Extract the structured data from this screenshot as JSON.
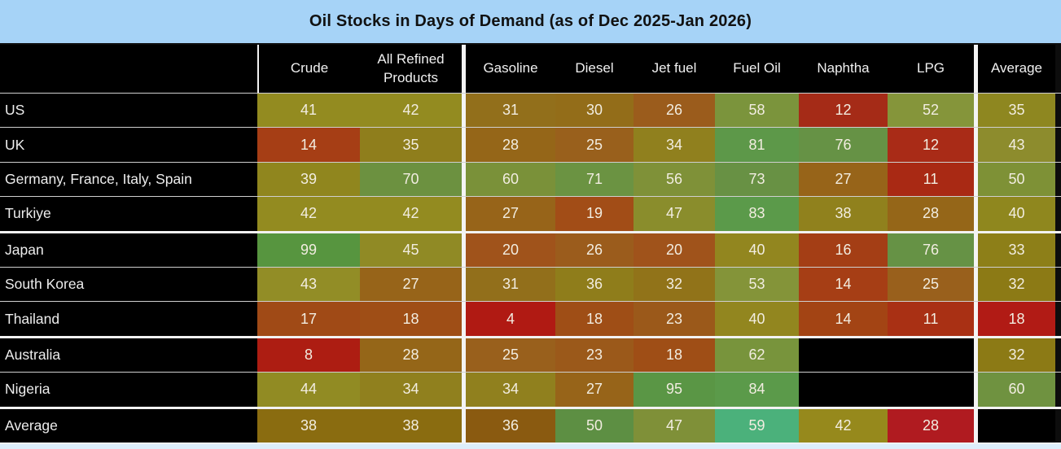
{
  "title": "Oil Stocks in Days of Demand (as of Dec 2025-Jan 2026)",
  "colors": {
    "title_bg": "#a6d3f7",
    "bottom_strip_bg": "#dceefb",
    "header_bg": "#000000",
    "header_text": "#f0f0f0",
    "label_text": "#ededed",
    "cell_text": "#f2ede1",
    "blank_cell_bg": "#000000",
    "thin_row_separator": "#cfcfcf",
    "group_row_separator": "#f2f2f2",
    "column_separator": "#f4f4f4",
    "right_edge": "#0d0d0d",
    "scale_low": "#b01a13",
    "scale_mid": "#938b20",
    "scale_high": "#57953f"
  },
  "columns": [
    "Crude",
    "All Refined Products",
    "Gasoline",
    "Diesel",
    "Jet fuel",
    "Fuel Oil",
    "Naphtha",
    "LPG",
    "Average"
  ],
  "rows": [
    {
      "label": "US",
      "group_start": false,
      "cells": [
        {
          "v": "41",
          "c": "#938b20"
        },
        {
          "v": "42",
          "c": "#938b20"
        },
        {
          "v": "31",
          "c": "#926f1b"
        },
        {
          "v": "30",
          "c": "#936d19"
        },
        {
          "v": "26",
          "c": "#9b5c1c"
        },
        {
          "v": "58",
          "c": "#7b943c"
        },
        {
          "v": "12",
          "c": "#a52b17"
        },
        {
          "v": "52",
          "c": "#85953a"
        },
        {
          "v": "35",
          "c": "#8e8720"
        }
      ]
    },
    {
      "label": "UK",
      "group_start": false,
      "cells": [
        {
          "v": "14",
          "c": "#a63e15"
        },
        {
          "v": "35",
          "c": "#8f7e1c"
        },
        {
          "v": "28",
          "c": "#956618"
        },
        {
          "v": "25",
          "c": "#99601c"
        },
        {
          "v": "34",
          "c": "#90801e"
        },
        {
          "v": "81",
          "c": "#5d9849"
        },
        {
          "v": "76",
          "c": "#669245"
        },
        {
          "v": "12",
          "c": "#a92b17"
        },
        {
          "v": "43",
          "c": "#8d8c2d"
        }
      ]
    },
    {
      "label": "Germany, France, Italy, Spain",
      "group_start": false,
      "cells": [
        {
          "v": "39",
          "c": "#90861e"
        },
        {
          "v": "70",
          "c": "#6c9140"
        },
        {
          "v": "60",
          "c": "#7a9139"
        },
        {
          "v": "71",
          "c": "#6b9342"
        },
        {
          "v": "56",
          "c": "#7f9138"
        },
        {
          "v": "73",
          "c": "#689144"
        },
        {
          "v": "27",
          "c": "#976419"
        },
        {
          "v": "11",
          "c": "#a92914"
        },
        {
          "v": "50",
          "c": "#7e9136"
        }
      ]
    },
    {
      "label": "Turkiye",
      "group_start": false,
      "cells": [
        {
          "v": "42",
          "c": "#938b20"
        },
        {
          "v": "42",
          "c": "#938b20"
        },
        {
          "v": "27",
          "c": "#976419"
        },
        {
          "v": "19",
          "c": "#a24d17"
        },
        {
          "v": "47",
          "c": "#8a8d2c"
        },
        {
          "v": "83",
          "c": "#5b9a4a"
        },
        {
          "v": "38",
          "c": "#90811d"
        },
        {
          "v": "28",
          "c": "#956618"
        },
        {
          "v": "40",
          "c": "#8f871e"
        }
      ]
    },
    {
      "label": "Japan",
      "group_start": true,
      "cells": [
        {
          "v": "99",
          "c": "#57953f"
        },
        {
          "v": "45",
          "c": "#908a25"
        },
        {
          "v": "20",
          "c": "#a0531b"
        },
        {
          "v": "26",
          "c": "#9b5c1c"
        },
        {
          "v": "20",
          "c": "#a0531b"
        },
        {
          "v": "40",
          "c": "#92861f"
        },
        {
          "v": "16",
          "c": "#a43e15"
        },
        {
          "v": "76",
          "c": "#669245"
        },
        {
          "v": "33",
          "c": "#8d7f18"
        }
      ]
    },
    {
      "label": "South Korea",
      "group_start": false,
      "cells": [
        {
          "v": "43",
          "c": "#928d26"
        },
        {
          "v": "27",
          "c": "#976419"
        },
        {
          "v": "31",
          "c": "#926f1b"
        },
        {
          "v": "36",
          "c": "#8f7d1b"
        },
        {
          "v": "32",
          "c": "#917319"
        },
        {
          "v": "53",
          "c": "#849439"
        },
        {
          "v": "14",
          "c": "#a63e15"
        },
        {
          "v": "25",
          "c": "#99601c"
        },
        {
          "v": "32",
          "c": "#8c7a15"
        }
      ]
    },
    {
      "label": "Thailand",
      "group_start": false,
      "cells": [
        {
          "v": "17",
          "c": "#a04a16"
        },
        {
          "v": "18",
          "c": "#9f4e16"
        },
        {
          "v": "4",
          "c": "#b01a13"
        },
        {
          "v": "18",
          "c": "#9f4e16"
        },
        {
          "v": "23",
          "c": "#9b591a"
        },
        {
          "v": "40",
          "c": "#92861f"
        },
        {
          "v": "14",
          "c": "#a34414"
        },
        {
          "v": "11",
          "c": "#a93014"
        },
        {
          "v": "18",
          "c": "#b11b15"
        }
      ]
    },
    {
      "label": "Australia",
      "group_start": true,
      "cells": [
        {
          "v": "8",
          "c": "#ad1d12"
        },
        {
          "v": "28",
          "c": "#956618"
        },
        {
          "v": "25",
          "c": "#99601c"
        },
        {
          "v": "23",
          "c": "#9b591a"
        },
        {
          "v": "18",
          "c": "#9f4e16"
        },
        {
          "v": "62",
          "c": "#78943c"
        },
        {
          "v": null,
          "c": null
        },
        {
          "v": null,
          "c": null
        },
        {
          "v": "32",
          "c": "#8c7a15"
        }
      ]
    },
    {
      "label": "Nigeria",
      "group_start": false,
      "cells": [
        {
          "v": "44",
          "c": "#918b23"
        },
        {
          "v": "34",
          "c": "#90801e"
        },
        {
          "v": "34",
          "c": "#90801e"
        },
        {
          "v": "27",
          "c": "#976419"
        },
        {
          "v": "95",
          "c": "#5a9645"
        },
        {
          "v": "84",
          "c": "#5b9a4a"
        },
        {
          "v": null,
          "c": null
        },
        {
          "v": null,
          "c": null
        },
        {
          "v": "60",
          "c": "#6f9240"
        }
      ]
    },
    {
      "label": "Average",
      "group_start": true,
      "cells": [
        {
          "v": "38",
          "c": "#8a6c10"
        },
        {
          "v": "38",
          "c": "#8a6c10"
        },
        {
          "v": "36",
          "c": "#8a5a10"
        },
        {
          "v": "50",
          "c": "#5d8f43"
        },
        {
          "v": "47",
          "c": "#7f9038"
        },
        {
          "v": "59",
          "c": "#4bb17b"
        },
        {
          "v": "42",
          "c": "#96891c"
        },
        {
          "v": "28",
          "c": "#b01b20"
        },
        {
          "v": null,
          "c": null
        }
      ]
    }
  ],
  "chart_data": {
    "type": "heatmap",
    "title": "Oil Stocks in Days of Demand (as of Dec 2025-Jan 2026)",
    "columns": [
      "Crude",
      "All Refined Products",
      "Gasoline",
      "Diesel",
      "Jet fuel",
      "Fuel Oil",
      "Naphtha",
      "LPG",
      "Average"
    ],
    "rows": [
      "US",
      "UK",
      "Germany, France, Italy, Spain",
      "Turkiye",
      "Japan",
      "South Korea",
      "Thailand",
      "Australia",
      "Nigeria",
      "Average"
    ],
    "values": [
      [
        41,
        42,
        31,
        30,
        26,
        58,
        12,
        52,
        35
      ],
      [
        14,
        35,
        28,
        25,
        34,
        81,
        76,
        12,
        43
      ],
      [
        39,
        70,
        60,
        71,
        56,
        73,
        27,
        11,
        50
      ],
      [
        42,
        42,
        27,
        19,
        47,
        83,
        38,
        28,
        40
      ],
      [
        99,
        45,
        20,
        26,
        20,
        40,
        16,
        76,
        33
      ],
      [
        43,
        27,
        31,
        36,
        32,
        53,
        14,
        25,
        32
      ],
      [
        17,
        18,
        4,
        18,
        23,
        40,
        14,
        11,
        18
      ],
      [
        8,
        28,
        25,
        23,
        18,
        62,
        null,
        null,
        32
      ],
      [
        44,
        34,
        34,
        27,
        95,
        84,
        null,
        null,
        60
      ],
      [
        38,
        38,
        36,
        50,
        47,
        59,
        42,
        28,
        null
      ]
    ],
    "value_unit": "days of demand",
    "color_scale": "red (low) -> olive/yellow (mid) -> green (high), blank cells black",
    "legend": "none",
    "grid": "white separators; thick dividers after 'All Refined Products', after 'LPG', and between row groups"
  }
}
